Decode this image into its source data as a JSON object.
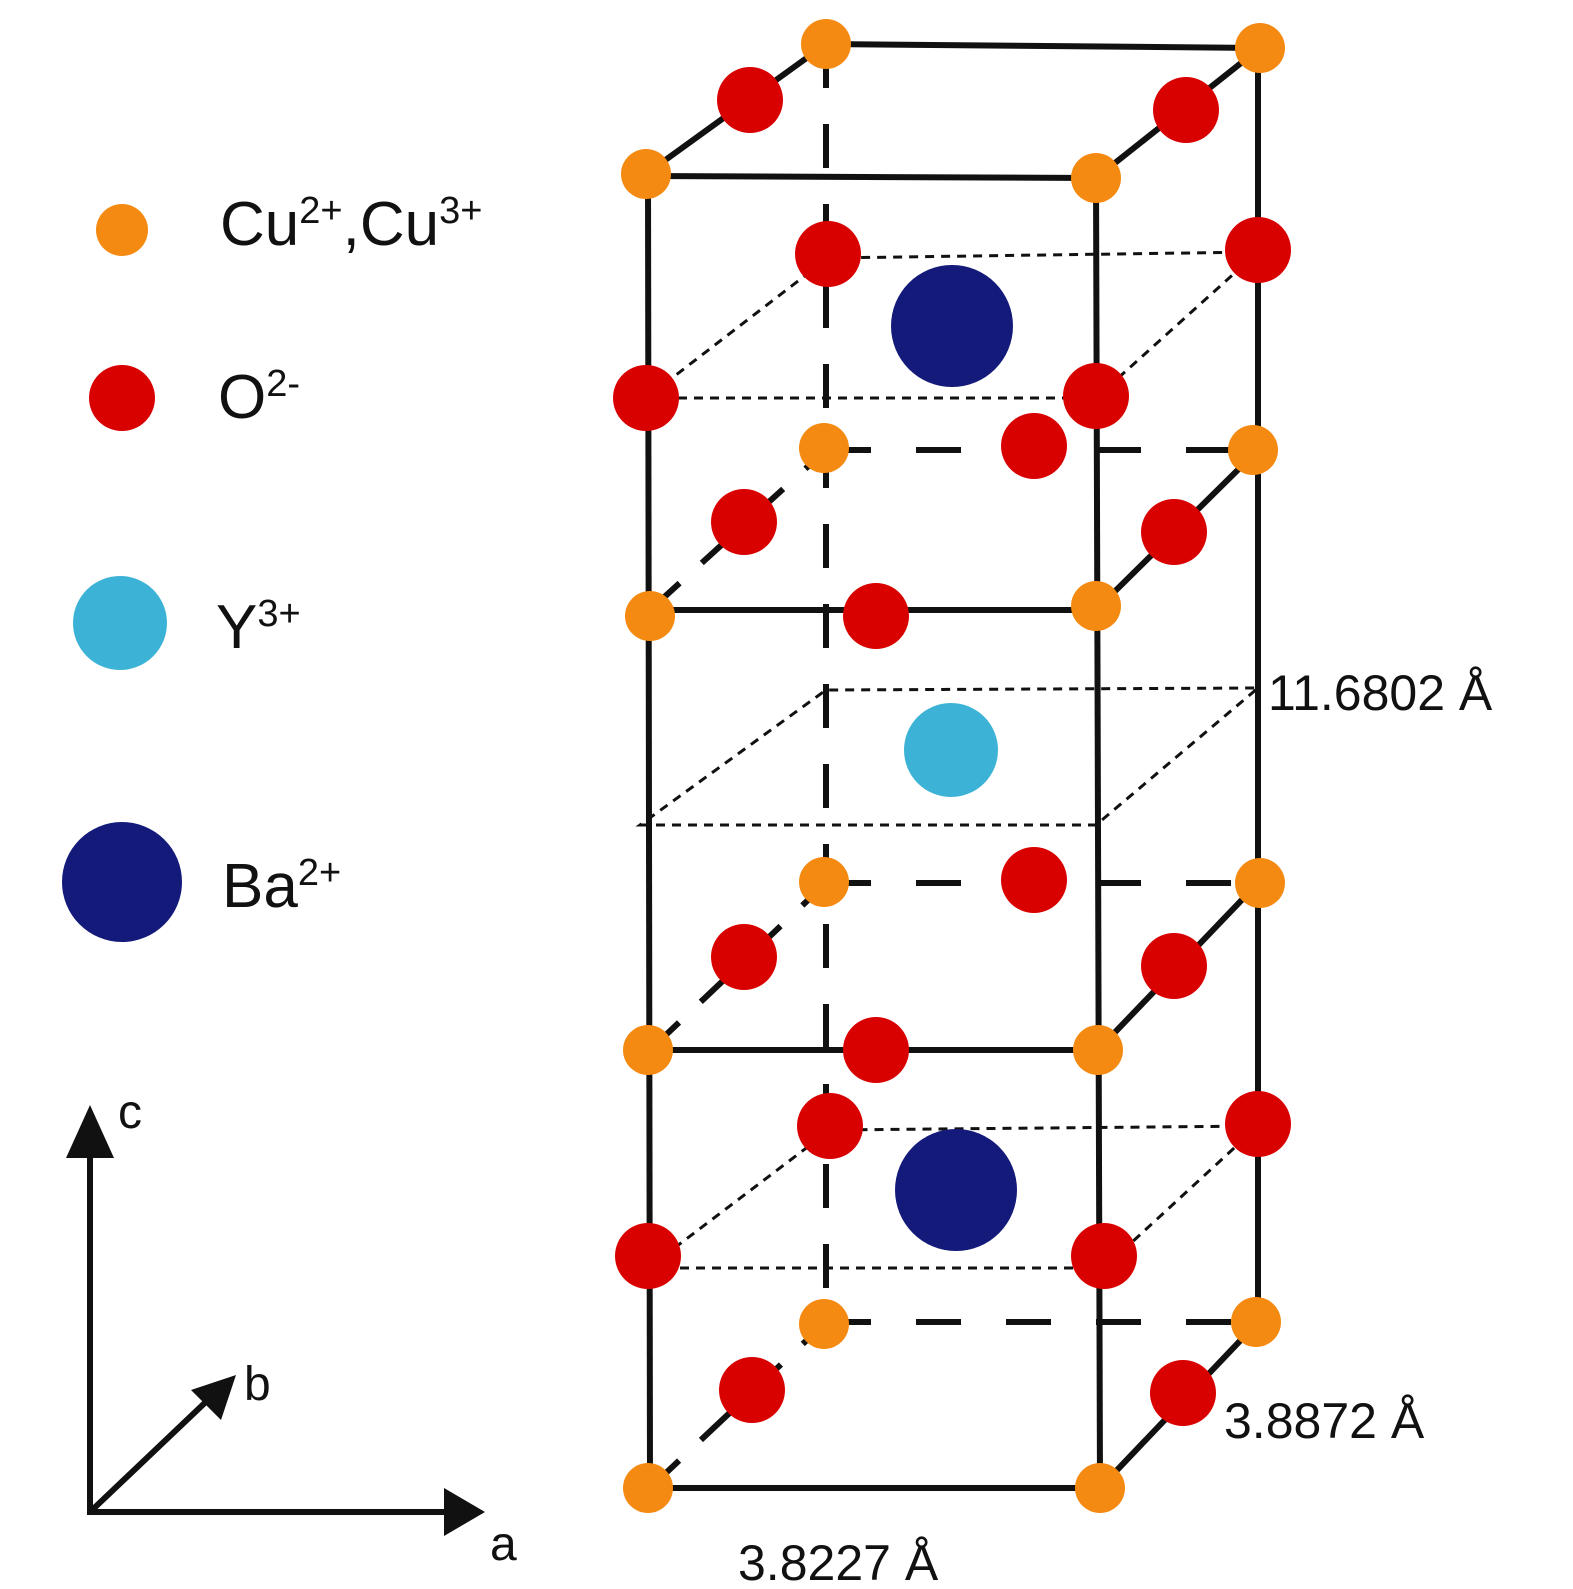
{
  "colors": {
    "copper": "#f58a12",
    "oxygen": "#d90000",
    "yttrium": "#3cb3d6",
    "barium": "#141a7a",
    "line": "#111111"
  },
  "legend": [
    {
      "atom": "copper",
      "base": "Cu",
      "sup": "2+",
      "sep": ",",
      "base2": "Cu",
      "sup2": "3+"
    },
    {
      "atom": "oxygen",
      "base": "O",
      "sup": "2-"
    },
    {
      "atom": "yttrium",
      "base": "Y",
      "sup": "3+"
    },
    {
      "atom": "barium",
      "base": "Ba",
      "sup": "2+"
    }
  ],
  "axes": {
    "a": "a",
    "b": "b",
    "c": "c"
  },
  "dimensions": {
    "c_length": "11.6802 Å",
    "b_length": "3.8872 Å",
    "a_length": "3.8227 Å"
  }
}
